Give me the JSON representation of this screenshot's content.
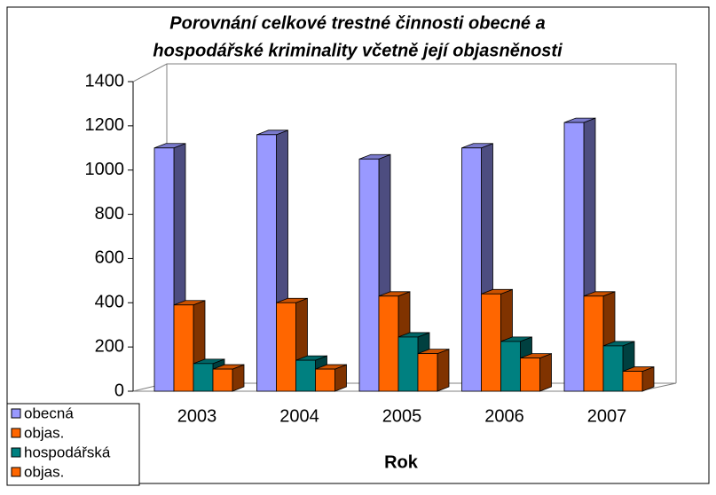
{
  "chart_data": {
    "type": "bar3d",
    "title": [
      "Porovnání celkové trestné činnosti obecné a",
      "hospodářské kriminality včetně její objasněnosti"
    ],
    "x_label": "Rok",
    "categories": [
      "2003",
      "2004",
      "2005",
      "2006",
      "2007"
    ],
    "series": [
      {
        "name": "obecná",
        "color": "#9999ff",
        "values": [
          1100,
          1160,
          1050,
          1100,
          1215
        ]
      },
      {
        "name": "objas.",
        "color": "#ff6600",
        "values": [
          390,
          400,
          430,
          440,
          430
        ]
      },
      {
        "name": "hospodářská",
        "color": "#008080",
        "values": [
          125,
          140,
          245,
          225,
          205
        ]
      },
      {
        "name": "objas.",
        "color": "#ff6600",
        "values": [
          100,
          100,
          170,
          150,
          90
        ]
      }
    ],
    "ylim": [
      0,
      1400
    ],
    "yticks": [
      0,
      200,
      400,
      600,
      800,
      1000,
      1200,
      1400
    ],
    "grid": false
  }
}
